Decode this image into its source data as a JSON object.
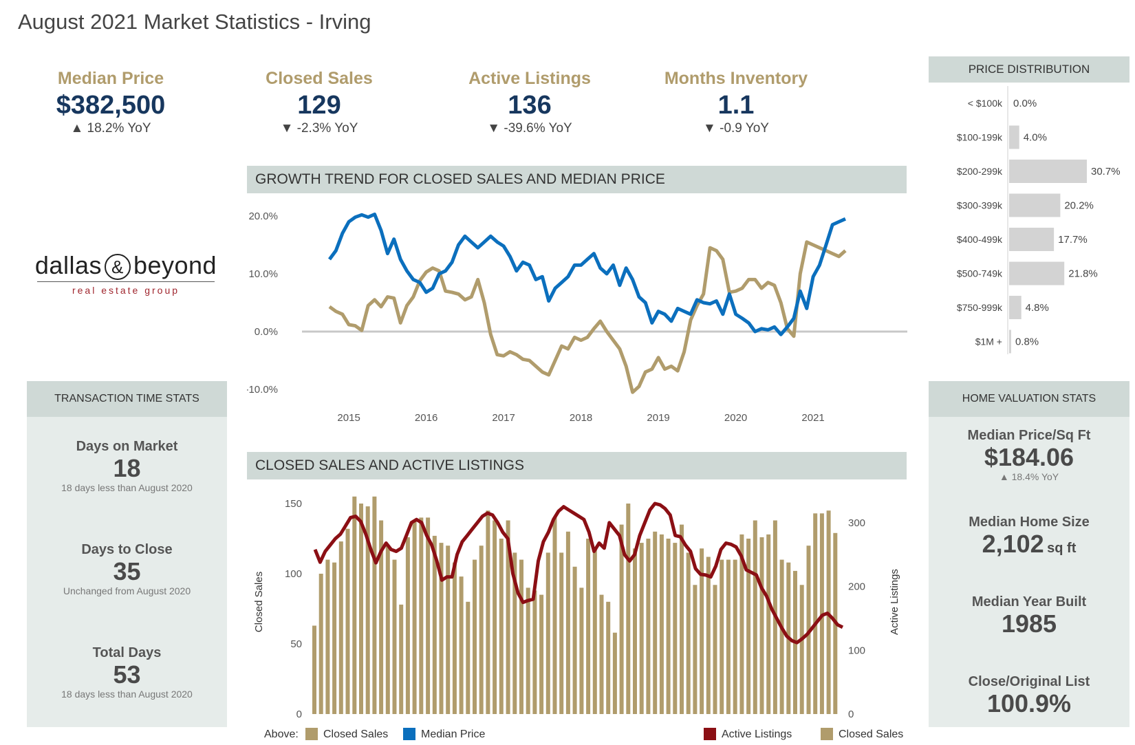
{
  "title": "August 2021 Market Statistics - Irving",
  "kpis": [
    {
      "label": "Median Price",
      "value": "$382,500",
      "yoy": "▲ 18.2% YoY"
    },
    {
      "label": "Closed Sales",
      "value": "129",
      "yoy": "▼ -2.3% YoY"
    },
    {
      "label": "Active Listings",
      "value": "136",
      "yoy": "▼ -39.6% YoY"
    },
    {
      "label": "Months Inventory",
      "value": "1.1",
      "yoy": "▼ -0.9 YoY"
    }
  ],
  "logo": {
    "main_left": "dallas",
    "amp": "&",
    "main_right": "beyond",
    "sub": "real estate group"
  },
  "sections": {
    "growth": "GROWTH TREND FOR CLOSED SALES AND MEDIAN PRICE",
    "closed_active": "CLOSED SALES AND ACTIVE LISTINGS"
  },
  "transaction": {
    "header": "TRANSACTION TIME STATS",
    "items": [
      {
        "label": "Days on Market",
        "value": "18",
        "note": "18 days less than August 2020"
      },
      {
        "label": "Days to Close",
        "value": "35",
        "note": "Unchanged from August 2020"
      },
      {
        "label": "Total Days",
        "value": "53",
        "note": "18 days less than August 2020"
      }
    ]
  },
  "valuation": {
    "header": "HOME VALUATION STATS",
    "ppsf_label": "Median Price/Sq Ft",
    "ppsf_value": "$184.06",
    "ppsf_note": "▲ 18.4% YoY",
    "size_label": "Median Home Size",
    "size_value": "2,102",
    "size_unit": "sq ft",
    "year_label": "Median Year Built",
    "year_value": "1985",
    "cl_label": "Close/Original List",
    "cl_value": "100.9%"
  },
  "legends": {
    "above_label": "Above:",
    "closed_sales": "Closed Sales",
    "median_price": "Median Price",
    "active_listings": "Active Listings"
  },
  "colors": {
    "gold": "#b09c6c",
    "blue": "#0b6fbd",
    "darkred": "#8b0f14",
    "navy": "#17375e",
    "panel": "#e6ecea",
    "header": "#cfd9d6",
    "bar_gray": "#d3d3d3"
  },
  "chart_data": [
    {
      "type": "line",
      "title": "GROWTH TREND FOR CLOSED SALES AND MEDIAN PRICE",
      "ylim": [
        -10,
        20
      ],
      "yticks": [
        "20.0%",
        "10.0%",
        "0.0%",
        "-10.0%"
      ],
      "ytick_values": [
        20,
        10,
        0,
        -10
      ],
      "xticks": [
        "2015",
        "2016",
        "2017",
        "2018",
        "2019",
        "2020",
        "2021"
      ],
      "xtick_values": [
        2015,
        2016,
        2017,
        2018,
        2019,
        2020,
        2021
      ],
      "series": [
        {
          "name": "Closed Sales",
          "color": "#b09c6c",
          "x": [
            2014.75,
            2014.833,
            2014.917,
            2015.0,
            2015.083,
            2015.167,
            2015.25,
            2015.333,
            2015.417,
            2015.5,
            2015.583,
            2015.667,
            2015.75,
            2015.833,
            2015.917,
            2016.0,
            2016.083,
            2016.167,
            2016.25,
            2016.333,
            2016.417,
            2016.5,
            2016.583,
            2016.667,
            2016.75,
            2016.833,
            2016.917,
            2017.0,
            2017.083,
            2017.167,
            2017.25,
            2017.333,
            2017.417,
            2017.5,
            2017.583,
            2017.667,
            2017.75,
            2017.833,
            2017.917,
            2018.0,
            2018.083,
            2018.167,
            2018.25,
            2018.333,
            2018.417,
            2018.5,
            2018.583,
            2018.667,
            2018.75,
            2018.833,
            2018.917,
            2019.0,
            2019.083,
            2019.167,
            2019.25,
            2019.333,
            2019.417,
            2019.5,
            2019.583,
            2019.667,
            2019.75,
            2019.833,
            2019.917,
            2020.0,
            2020.083,
            2020.167,
            2020.25,
            2020.333,
            2020.417,
            2020.5,
            2020.583,
            2020.667,
            2020.75,
            2020.833,
            2020.917,
            2021.0,
            2021.083,
            2021.167,
            2021.25,
            2021.333,
            2021.417
          ],
          "values": [
            4.3,
            3.5,
            3.0,
            1.2,
            1.0,
            0.2,
            4.5,
            5.5,
            4.3,
            6.0,
            5.8,
            1.5,
            4.5,
            6.0,
            8.8,
            10.3,
            11.0,
            10.5,
            7.0,
            6.8,
            6.5,
            5.5,
            6.0,
            9.0,
            5.0,
            -0.5,
            -4.0,
            -4.2,
            -3.5,
            -4.0,
            -4.8,
            -5.0,
            -6.0,
            -7.0,
            -7.5,
            -5.0,
            -2.5,
            -3.0,
            -1.0,
            -1.5,
            -1.0,
            0.5,
            1.8,
            0.0,
            -1.5,
            -3.0,
            -6.0,
            -10.5,
            -9.5,
            -7.0,
            -6.5,
            -4.5,
            -6.5,
            -6.0,
            -6.8,
            -3.5,
            2.0,
            4.5,
            6.5,
            14.5,
            14.0,
            12.5,
            6.8,
            7.0,
            7.5,
            9.0,
            9.0,
            7.5,
            8.5,
            8.0,
            5.0,
            0.5,
            -0.8,
            10.0,
            15.5,
            15.0,
            14.5,
            14.0,
            13.5,
            13.0,
            14.0
          ]
        },
        {
          "name": "Median Price",
          "color": "#0b6fbd",
          "x": [
            2014.75,
            2014.833,
            2014.917,
            2015.0,
            2015.083,
            2015.167,
            2015.25,
            2015.333,
            2015.417,
            2015.5,
            2015.583,
            2015.667,
            2015.75,
            2015.833,
            2015.917,
            2016.0,
            2016.083,
            2016.167,
            2016.25,
            2016.333,
            2016.417,
            2016.5,
            2016.583,
            2016.667,
            2016.75,
            2016.833,
            2016.917,
            2017.0,
            2017.083,
            2017.167,
            2017.25,
            2017.333,
            2017.417,
            2017.5,
            2017.583,
            2017.667,
            2017.75,
            2017.833,
            2017.917,
            2018.0,
            2018.083,
            2018.167,
            2018.25,
            2018.333,
            2018.417,
            2018.5,
            2018.583,
            2018.667,
            2018.75,
            2018.833,
            2018.917,
            2019.0,
            2019.083,
            2019.167,
            2019.25,
            2019.333,
            2019.417,
            2019.5,
            2019.583,
            2019.667,
            2019.75,
            2019.833,
            2019.917,
            2020.0,
            2020.083,
            2020.167,
            2020.25,
            2020.333,
            2020.417,
            2020.5,
            2020.583,
            2020.667,
            2020.75,
            2020.833,
            2020.917,
            2021.0,
            2021.083,
            2021.167,
            2021.25,
            2021.333,
            2021.417
          ],
          "values": [
            12.5,
            14.0,
            17.0,
            19.0,
            19.8,
            20.2,
            19.8,
            20.3,
            17.5,
            13.5,
            16.0,
            12.5,
            10.5,
            9.0,
            8.5,
            6.8,
            7.5,
            10.0,
            10.5,
            12.0,
            15.0,
            16.5,
            15.5,
            14.5,
            15.5,
            16.5,
            15.5,
            14.8,
            13.0,
            10.5,
            12.0,
            11.5,
            9.0,
            9.5,
            5.3,
            7.5,
            8.5,
            9.5,
            11.5,
            11.5,
            12.5,
            13.5,
            11.0,
            10.0,
            11.5,
            8.0,
            11.0,
            9.0,
            6.0,
            5.0,
            1.5,
            3.5,
            3.0,
            1.8,
            4.0,
            3.5,
            3.0,
            5.5,
            5.0,
            4.8,
            5.3,
            3.0,
            6.5,
            3.0,
            2.3,
            1.5,
            0.0,
            0.5,
            0.3,
            0.8,
            -0.5,
            0.8,
            2.3,
            7.0,
            4.0,
            9.5,
            11.5,
            15.0,
            18.5,
            19.0,
            19.5
          ]
        }
      ]
    },
    {
      "type": "bar",
      "title": "CLOSED SALES AND ACTIVE LISTINGS",
      "ylabel": "Closed Sales",
      "ylim": [
        0,
        150
      ],
      "yticks": [
        0,
        50,
        100,
        150
      ],
      "y2label": "Active Listings",
      "y2lim": [
        0,
        330
      ],
      "y2ticks": [
        0,
        100,
        200,
        300
      ],
      "series": [
        {
          "name": "Closed Sales",
          "axis": "left",
          "type": "bar",
          "color": "#b09c6c",
          "values": [
            63,
            100,
            110,
            108,
            123,
            132,
            155,
            150,
            148,
            155,
            138,
            120,
            110,
            78,
            126,
            138,
            140,
            140,
            127,
            122,
            120,
            108,
            98,
            80,
            110,
            120,
            145,
            138,
            125,
            138,
            115,
            110,
            90,
            88,
            85,
            115,
            140,
            115,
            130,
            105,
            90,
            125,
            118,
            85,
            80,
            58,
            135,
            150,
            118,
            122,
            125,
            130,
            128,
            125,
            122,
            135,
            115,
            92,
            118,
            112,
            92,
            110,
            110,
            110,
            128,
            125,
            138,
            126,
            128,
            138,
            110,
            108,
            102,
            92,
            120,
            143,
            143,
            145,
            129
          ]
        },
        {
          "name": "Active Listings",
          "axis": "right",
          "type": "line",
          "color": "#8b0f14",
          "values": [
            258,
            238,
            255,
            265,
            275,
            282,
            295,
            308,
            310,
            302,
            282,
            258,
            237,
            255,
            268,
            258,
            255,
            260,
            280,
            300,
            305,
            300,
            280,
            265,
            240,
            210,
            215,
            215,
            250,
            270,
            280,
            290,
            300,
            310,
            315,
            312,
            300,
            285,
            275,
            220,
            190,
            175,
            178,
            180,
            240,
            270,
            285,
            305,
            318,
            325,
            320,
            315,
            310,
            305,
            285,
            255,
            268,
            260,
            300,
            290,
            280,
            250,
            240,
            250,
            280,
            300,
            320,
            330,
            328,
            322,
            312,
            280,
            278,
            265,
            255,
            228,
            219,
            218,
            215,
            232,
            258,
            268,
            266,
            262,
            248,
            226,
            222,
            218,
            198,
            185,
            165,
            150,
            135,
            122,
            115,
            112,
            118,
            125,
            135,
            145,
            155,
            158,
            150,
            140,
            136
          ]
        },
        {
          "name": "Closed Sales",
          "axis": "left",
          "type": "legend-ref",
          "color": "#b09c6c"
        }
      ]
    },
    {
      "type": "bar",
      "title": "PRICE DISTRIBUTION",
      "orientation": "horizontal",
      "categories": [
        "< $100k",
        "$100-199k",
        "$200-299k",
        "$300-399k",
        "$400-499k",
        "$500-749k",
        "$750-999k",
        "$1M +"
      ],
      "values": [
        0.0,
        4.0,
        30.7,
        20.2,
        17.7,
        21.8,
        4.8,
        0.8
      ],
      "labels": [
        "0.0%",
        "4.0%",
        "30.7%",
        "20.2%",
        "17.7%",
        "21.8%",
        "4.8%",
        "0.8%"
      ],
      "color": "#d3d3d3"
    }
  ]
}
